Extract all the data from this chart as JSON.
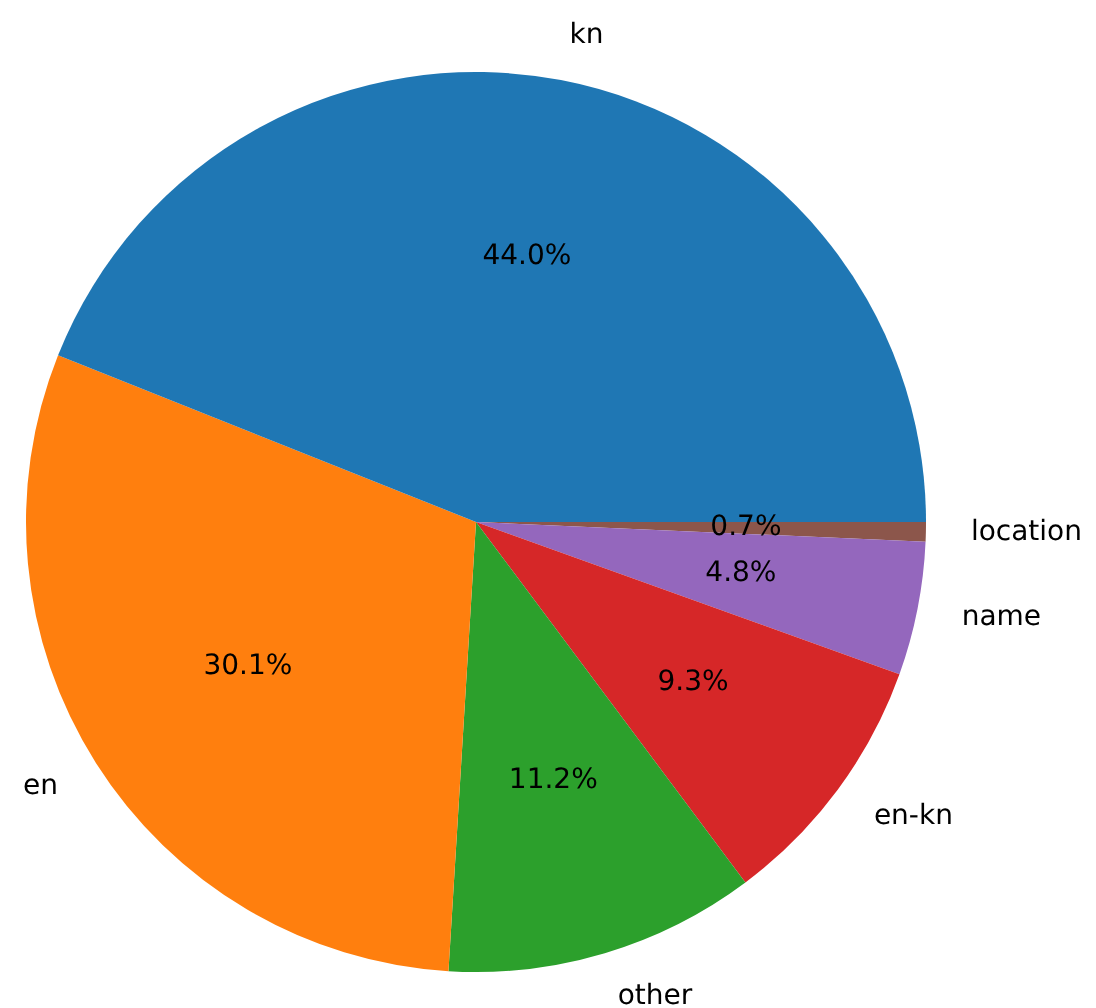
{
  "chart_data": {
    "type": "pie",
    "categories": [
      "kn",
      "en",
      "other",
      "en-kn",
      "name",
      "location"
    ],
    "values": [
      44.0,
      30.1,
      11.2,
      9.3,
      4.8,
      0.7
    ],
    "colors": [
      "#1f77b4",
      "#ff7f0e",
      "#2ca02c",
      "#d62728",
      "#9467bd",
      "#8c564b"
    ],
    "value_labels": [
      "44.0%",
      "30.1%",
      "11.2%",
      "9.3%",
      "4.8%",
      "0.7%"
    ],
    "legend": false
  }
}
